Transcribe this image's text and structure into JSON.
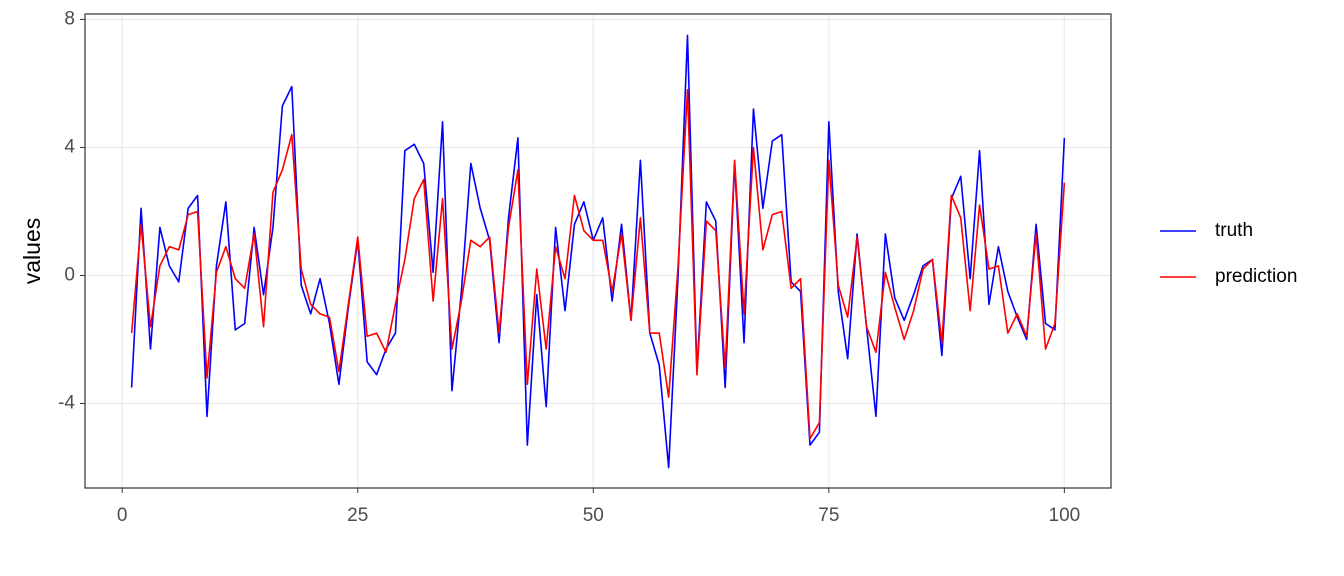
{
  "chart_data": {
    "type": "line",
    "y_label": "values",
    "x": [
      1,
      2,
      3,
      4,
      5,
      6,
      7,
      8,
      9,
      10,
      11,
      12,
      13,
      14,
      15,
      16,
      17,
      18,
      19,
      20,
      21,
      22,
      23,
      24,
      25,
      26,
      27,
      28,
      29,
      30,
      31,
      32,
      33,
      34,
      35,
      36,
      37,
      38,
      39,
      40,
      41,
      42,
      43,
      44,
      45,
      46,
      47,
      48,
      49,
      50,
      51,
      52,
      53,
      54,
      55,
      56,
      57,
      58,
      59,
      60,
      61,
      62,
      63,
      64,
      65,
      66,
      67,
      68,
      69,
      70,
      71,
      72,
      73,
      74,
      75,
      76,
      77,
      78,
      79,
      80,
      81,
      82,
      83,
      84,
      85,
      86,
      87,
      88,
      89,
      90,
      91,
      92,
      93,
      94,
      95,
      96,
      97,
      98,
      99,
      100
    ],
    "series": [
      {
        "name": "truth",
        "color": "#0000ff",
        "values": [
          -3.5,
          2.1,
          -2.3,
          1.5,
          0.3,
          -0.2,
          2.1,
          2.5,
          -4.4,
          0.3,
          2.3,
          -1.7,
          -1.5,
          1.5,
          -0.6,
          1.5,
          5.3,
          5.9,
          -0.3,
          -1.2,
          -0.1,
          -1.5,
          -3.4,
          -1.0,
          1.1,
          -2.7,
          -3.1,
          -2.3,
          -1.8,
          3.9,
          4.1,
          3.5,
          0.1,
          4.8,
          -3.6,
          -0.5,
          3.5,
          2.1,
          1.1,
          -2.1,
          1.8,
          4.3,
          -5.3,
          -0.6,
          -4.1,
          1.5,
          -1.1,
          1.6,
          2.3,
          1.1,
          1.8,
          -0.8,
          1.6,
          -1.4,
          3.6,
          -1.8,
          -2.8,
          -6.0,
          0.0,
          7.5,
          -3.0,
          2.3,
          1.7,
          -3.5,
          3.5,
          -2.1,
          5.2,
          2.1,
          4.2,
          4.4,
          -0.2,
          -0.5,
          -5.3,
          -4.9,
          4.8,
          -0.5,
          -2.6,
          1.3,
          -1.6,
          -4.4,
          1.3,
          -0.7,
          -1.4,
          -0.6,
          0.3,
          0.5,
          -2.5,
          2.4,
          3.1,
          -0.1,
          3.9,
          -0.9,
          0.9,
          -0.5,
          -1.3,
          -2.0,
          1.6,
          -1.5,
          -1.7,
          4.3
        ]
      },
      {
        "name": "prediction",
        "color": "#ff0000",
        "values": [
          -1.8,
          1.6,
          -1.6,
          0.3,
          0.9,
          0.8,
          1.9,
          2.0,
          -3.2,
          0.1,
          0.9,
          -0.1,
          -0.4,
          1.3,
          -1.6,
          2.6,
          3.3,
          4.4,
          0.2,
          -0.9,
          -1.2,
          -1.3,
          -3.0,
          -0.9,
          1.2,
          -1.9,
          -1.8,
          -2.4,
          -0.9,
          0.5,
          2.4,
          3.0,
          -0.8,
          2.4,
          -2.3,
          -0.8,
          1.1,
          0.9,
          1.2,
          -1.8,
          1.5,
          3.3,
          -3.4,
          0.2,
          -2.3,
          0.9,
          -0.1,
          2.5,
          1.4,
          1.1,
          1.1,
          -0.5,
          1.3,
          -1.4,
          1.8,
          -1.8,
          -1.8,
          -3.8,
          0.3,
          5.8,
          -3.1,
          1.7,
          1.4,
          -2.9,
          3.6,
          -1.2,
          4.0,
          0.8,
          1.9,
          2.0,
          -0.4,
          -0.1,
          -5.1,
          -4.6,
          3.6,
          -0.3,
          -1.3,
          1.2,
          -1.6,
          -2.4,
          0.1,
          -1.0,
          -2.0,
          -1.1,
          0.2,
          0.5,
          -2.1,
          2.5,
          1.8,
          -1.1,
          2.2,
          0.2,
          0.3,
          -1.8,
          -1.2,
          -1.9,
          1.3,
          -2.3,
          -1.5,
          2.9
        ]
      }
    ],
    "xlim": [
      -3.95,
      104.95
    ],
    "xticks": [
      0,
      25,
      50,
      75,
      100
    ],
    "ylim": [
      -6.64,
      8.17
    ],
    "yticks": [
      -4,
      0,
      4,
      8
    ],
    "grid": true,
    "legend": "right"
  }
}
